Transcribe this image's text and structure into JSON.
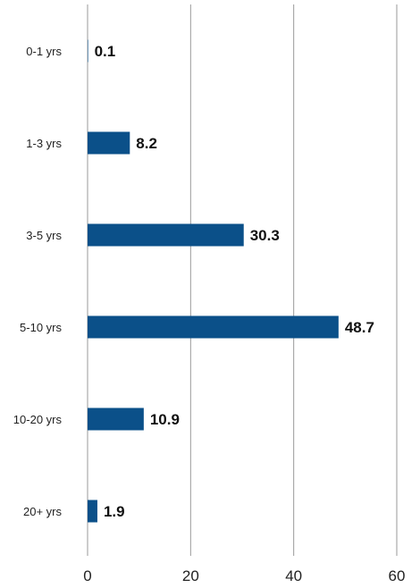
{
  "chart_data": {
    "type": "bar",
    "orientation": "horizontal",
    "title": "",
    "xlabel": "",
    "ylabel": "",
    "categories": [
      "0-1 yrs",
      "1-3 yrs",
      "3-5 yrs",
      "5-10 yrs",
      "10-20 yrs",
      "20+ yrs"
    ],
    "values": [
      0.1,
      8.2,
      30.3,
      48.7,
      10.9,
      1.9
    ],
    "value_labels": [
      "0.1",
      "8.2",
      "30.3",
      "48.7",
      "10.9",
      "1.9"
    ],
    "xlim": [
      0,
      60
    ],
    "x_ticks": [
      0,
      20,
      40,
      60
    ],
    "x_tick_labels": [
      "0",
      "20",
      "40",
      "60"
    ],
    "grid": true,
    "legend": "none",
    "bar_color": "#0b5089",
    "grid_color": "#9a9a9a"
  }
}
